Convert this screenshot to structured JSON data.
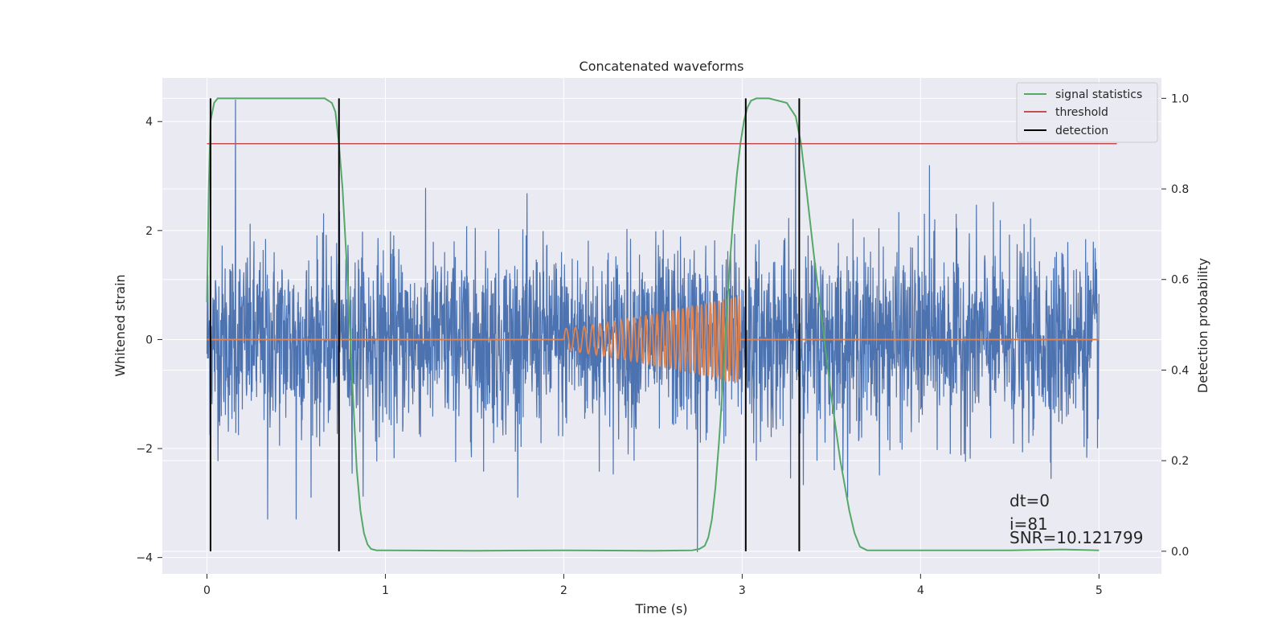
{
  "chart_data": {
    "type": "line",
    "title": "Concatenated waveforms",
    "xlabel": "Time (s)",
    "ylabel": "Whitened strain",
    "ylabel_right": "Detection probability",
    "xlim": [
      -0.25,
      5.35
    ],
    "ylim": [
      -4.3,
      4.8
    ],
    "ylim_right": [
      -0.05,
      1.045
    ],
    "x_ticks": [
      0,
      1,
      2,
      3,
      4,
      5
    ],
    "y_ticks": [
      -4,
      -2,
      0,
      2,
      4
    ],
    "y_right_ticks": [
      0.0,
      0.2,
      0.4,
      0.6,
      0.8,
      1.0
    ],
    "grid": true,
    "legend_position": "top-right",
    "colors": {
      "background": "#eaeaf2",
      "grid": "#ffffff",
      "strain": "#4c72b0",
      "template": "#dd8452",
      "signal_statistics": "#55a868",
      "threshold": "#c44e52",
      "detection": "#000000"
    },
    "series": [
      {
        "name": "signal statistics",
        "axis": "right",
        "x": [
          0.0,
          0.01,
          0.02,
          0.04,
          0.06,
          0.1,
          0.2,
          0.4,
          0.6,
          0.66,
          0.7,
          0.72,
          0.74,
          0.76,
          0.78,
          0.8,
          0.82,
          0.84,
          0.86,
          0.88,
          0.9,
          0.92,
          0.95,
          1.0,
          1.5,
          2.0,
          2.5,
          2.72,
          2.76,
          2.79,
          2.81,
          2.83,
          2.85,
          2.87,
          2.89,
          2.91,
          2.93,
          2.95,
          2.97,
          2.99,
          3.01,
          3.03,
          3.05,
          3.08,
          3.15,
          3.25,
          3.3,
          3.33,
          3.36,
          3.4,
          3.45,
          3.5,
          3.55,
          3.6,
          3.63,
          3.66,
          3.7,
          4.0,
          4.5,
          4.8,
          5.0
        ],
        "y": [
          0.55,
          0.8,
          0.95,
          0.99,
          1.0,
          1.0,
          1.0,
          1.0,
          1.0,
          1.0,
          0.99,
          0.97,
          0.9,
          0.8,
          0.66,
          0.5,
          0.33,
          0.18,
          0.09,
          0.04,
          0.015,
          0.005,
          0.002,
          0.002,
          0.001,
          0.002,
          0.001,
          0.002,
          0.005,
          0.012,
          0.03,
          0.07,
          0.14,
          0.24,
          0.36,
          0.5,
          0.63,
          0.74,
          0.83,
          0.9,
          0.95,
          0.98,
          0.995,
          1.0,
          1.0,
          0.99,
          0.96,
          0.9,
          0.8,
          0.66,
          0.5,
          0.34,
          0.2,
          0.09,
          0.04,
          0.01,
          0.002,
          0.002,
          0.002,
          0.004,
          0.002
        ]
      },
      {
        "name": "threshold",
        "axis": "right",
        "x": [
          0.0,
          5.1
        ],
        "y": [
          0.9,
          0.9
        ]
      },
      {
        "name": "detection",
        "axis": "right",
        "x_lines": [
          0.02,
          0.74,
          3.02,
          3.32
        ],
        "y_range": [
          0.0,
          1.0
        ]
      }
    ],
    "strain_noise": {
      "x_range": [
        0.0,
        5.0
      ],
      "typical_range": [
        -2.2,
        2.2
      ],
      "peaks": [
        {
          "x": 0.16,
          "y": 4.4
        },
        {
          "x": 0.34,
          "y": -3.3
        },
        {
          "x": 0.5,
          "y": -3.3
        },
        {
          "x": 2.75,
          "y": -3.9
        },
        {
          "x": 3.3,
          "y": 3.7
        },
        {
          "x": 3.32,
          "y": -3.1
        },
        {
          "x": 4.05,
          "y": 3.2
        }
      ]
    },
    "template": {
      "x_flat_start": 0.0,
      "x_chirp_start": 2.0,
      "x_chirp_end": 2.99,
      "x_end": 5.0,
      "amplitude_start": 0.2,
      "amplitude_end": 0.8
    }
  },
  "annotations": {
    "dt": "dt=0",
    "i": "i=81",
    "snr": "SNR=10.121799"
  }
}
